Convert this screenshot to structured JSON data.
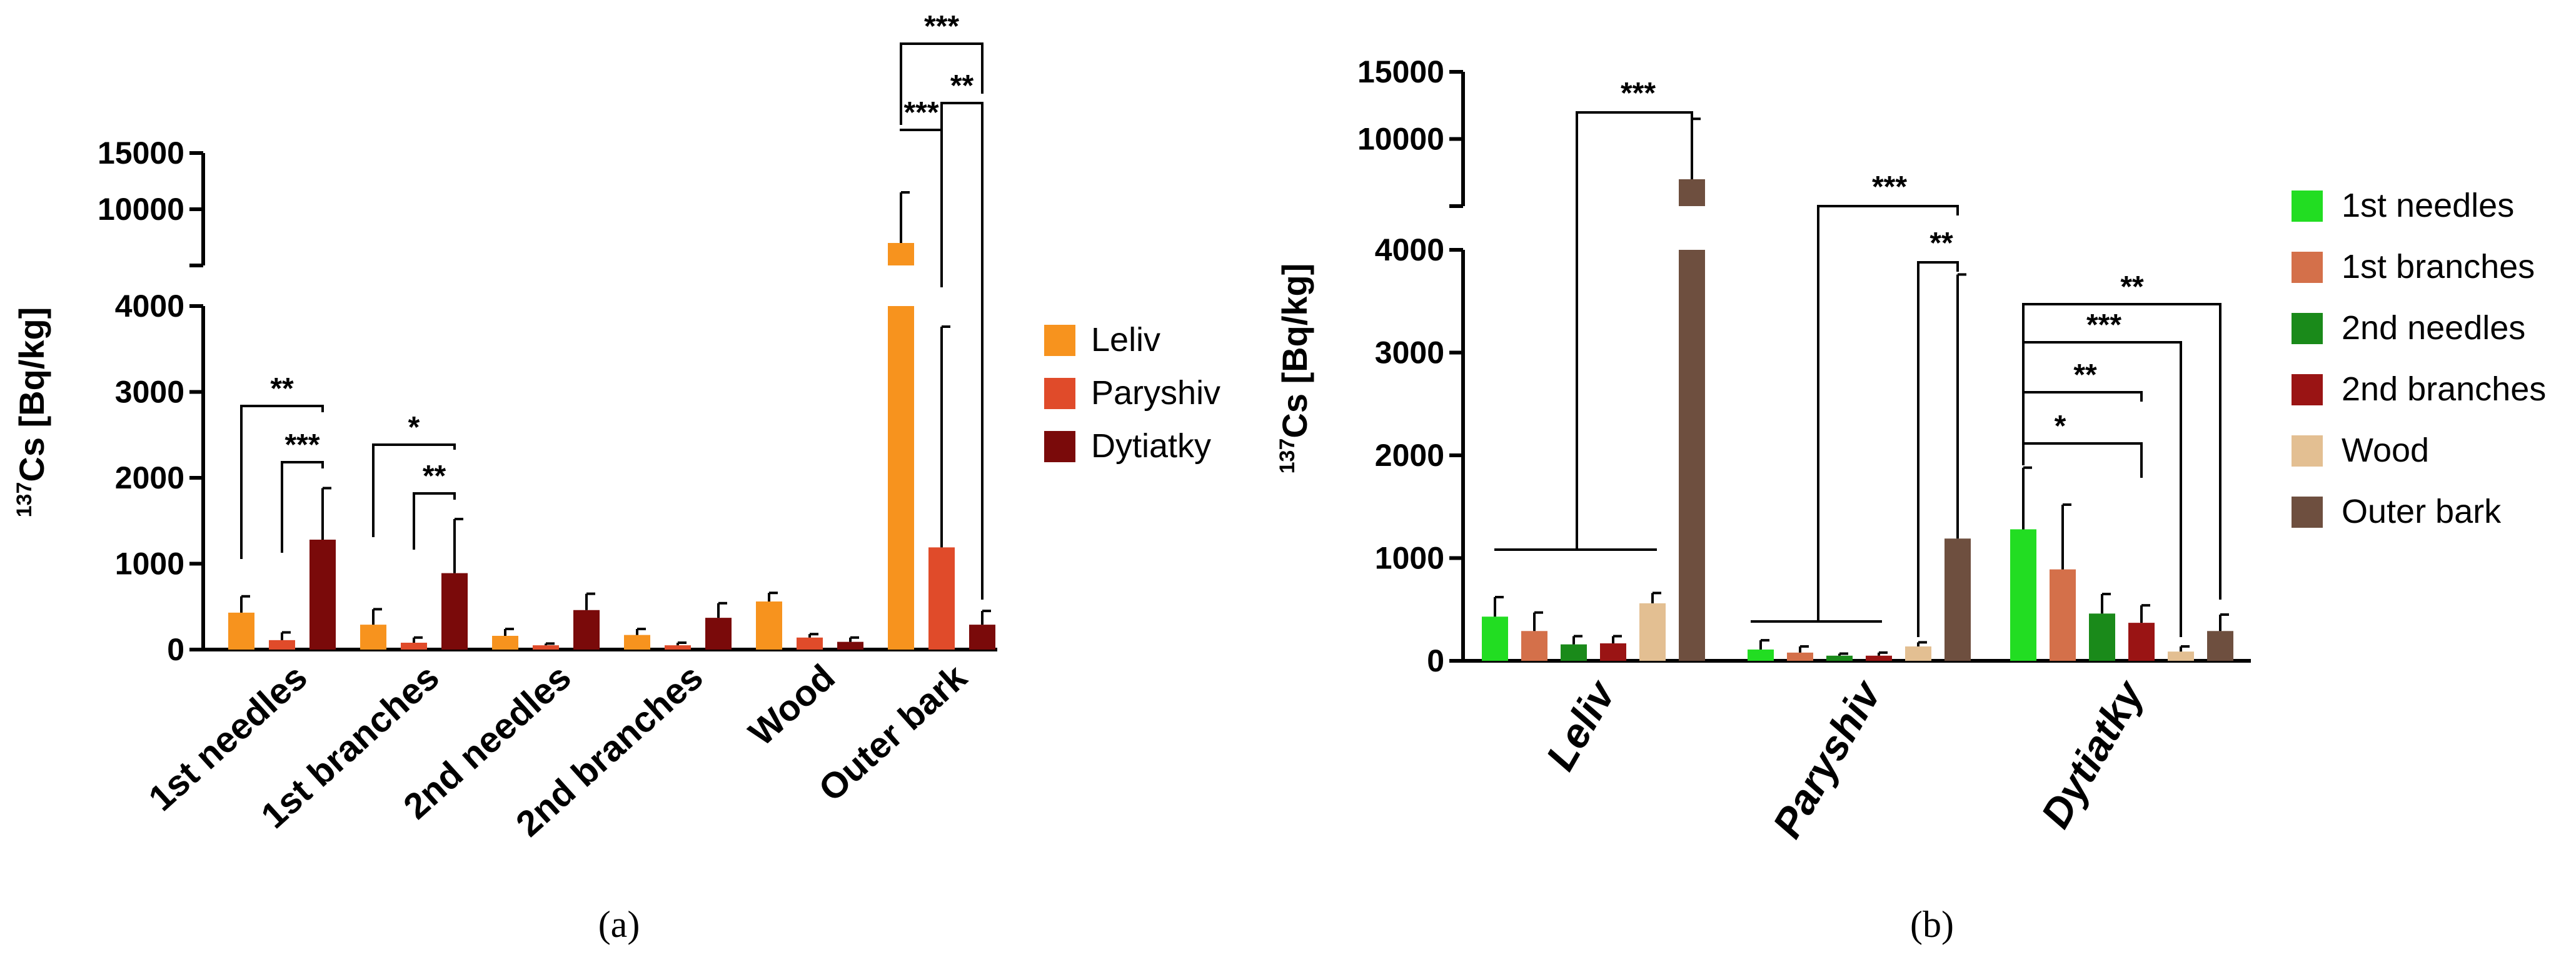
{
  "figure": {
    "panel_a_label": "(a)",
    "panel_b_label": "(b)"
  },
  "chart_data": [
    {
      "type": "bar",
      "panel": "a",
      "ylabel_sup": "137",
      "ylabel_main": "Cs [Bq/kg]",
      "ylim_lower": [
        0,
        4000
      ],
      "ylim_upper": [
        5000,
        15000
      ],
      "yticks_lower": [
        "0",
        "1000",
        "2000",
        "3000",
        "4000"
      ],
      "yticks_upper": [
        "10000",
        "15000"
      ],
      "categories": [
        "1st needles",
        "1st branches",
        "2nd needles",
        "2nd branches",
        "Wood",
        "Outer bark"
      ],
      "series": [
        {
          "name": "Leliv",
          "color": "#F7931E",
          "values": [
            430,
            290,
            160,
            170,
            560,
            7000
          ],
          "errors": [
            190,
            180,
            80,
            70,
            100,
            4500
          ]
        },
        {
          "name": "Paryshiv",
          "color": "#E04B2A",
          "values": [
            110,
            80,
            50,
            50,
            140,
            1190
          ],
          "errors": [
            90,
            60,
            20,
            30,
            40,
            2570
          ]
        },
        {
          "name": "Dytiatky",
          "color": "#7A0A0A",
          "values": [
            1280,
            890,
            460,
            370,
            90,
            290
          ],
          "errors": [
            600,
            630,
            190,
            170,
            50,
            160
          ]
        }
      ],
      "significance": [
        {
          "label": "**",
          "from": "1st needles / Leliv",
          "to": "1st needles / Dytiatky"
        },
        {
          "label": "***",
          "from": "1st needles / Paryshiv",
          "to": "1st needles / Dytiatky"
        },
        {
          "label": "*",
          "from": "1st branches / Leliv",
          "to": "1st branches / Dytiatky"
        },
        {
          "label": "**",
          "from": "1st branches / Paryshiv",
          "to": "1st branches / Dytiatky"
        },
        {
          "label": "***",
          "from": "Outer bark / Leliv",
          "to": "Outer bark / Paryshiv"
        },
        {
          "label": "**",
          "from": "Outer bark / Paryshiv",
          "to": "Outer bark / Dytiatky"
        },
        {
          "label": "***",
          "from": "Outer bark / Leliv",
          "to": "Outer bark / Dytiatky"
        }
      ],
      "legend": [
        "Leliv",
        "Paryshiv",
        "Dytiatky"
      ]
    },
    {
      "type": "bar",
      "panel": "b",
      "ylabel_sup": "137",
      "ylabel_main": "Cs [Bq/kg]",
      "ylim_lower": [
        0,
        4000
      ],
      "ylim_upper": [
        5000,
        15000
      ],
      "yticks_lower": [
        "0",
        "1000",
        "2000",
        "3000",
        "4000"
      ],
      "yticks_upper": [
        "10000",
        "15000"
      ],
      "categories": [
        "Leliv",
        "Paryshiv",
        "Dytiatky"
      ],
      "series": [
        {
          "name": "1st needles",
          "color": "#22DD22",
          "values": [
            430,
            110,
            1280
          ],
          "errors": [
            190,
            90,
            600
          ]
        },
        {
          "name": "1st branches",
          "color": "#D4704A",
          "values": [
            290,
            80,
            890
          ],
          "errors": [
            180,
            60,
            630
          ]
        },
        {
          "name": "2nd needles",
          "color": "#1A8A1A",
          "values": [
            160,
            50,
            460
          ],
          "errors": [
            80,
            20,
            190
          ]
        },
        {
          "name": "2nd branches",
          "color": "#9A1414",
          "values": [
            170,
            50,
            370
          ],
          "errors": [
            70,
            30,
            170
          ]
        },
        {
          "name": "Wood",
          "color": "#E3BF92",
          "values": [
            560,
            140,
            90
          ],
          "errors": [
            100,
            40,
            50
          ]
        },
        {
          "name": "Outer bark",
          "color": "#6E4F3F",
          "values": [
            7000,
            1190,
            290
          ],
          "errors": [
            4500,
            2570,
            160
          ]
        }
      ],
      "significance": [
        {
          "label": "***",
          "group": "Leliv",
          "from": "group 1st needles–Wood",
          "to": "Outer bark"
        },
        {
          "label": "***",
          "group": "Paryshiv",
          "from": "group 1st needles–Wood",
          "to": "Outer bark"
        },
        {
          "label": "**",
          "group": "Paryshiv",
          "from": "Wood",
          "to": "Outer bark"
        },
        {
          "label": "*",
          "group": "Dytiatky",
          "from": "1st needles",
          "to": "2nd branches"
        },
        {
          "label": "**",
          "group": "Dytiatky",
          "from": "1st needles",
          "to": "2nd branches"
        },
        {
          "label": "***",
          "group": "Dytiatky",
          "from": "1st needles",
          "to": "Wood"
        },
        {
          "label": "**",
          "group": "Dytiatky",
          "from": "1st needles",
          "to": "Outer bark"
        }
      ],
      "legend": [
        "1st needles",
        "1st branches",
        "2nd needles",
        "2nd branches",
        "Wood",
        "Outer bark"
      ]
    }
  ]
}
